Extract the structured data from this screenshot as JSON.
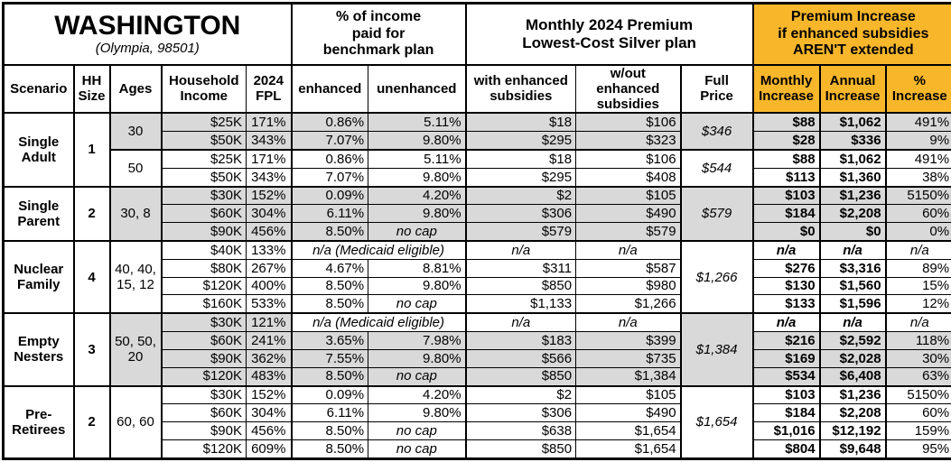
{
  "title": "WASHINGTON",
  "subtitle": "(Olympia, 98501)",
  "colors": {
    "accent_orange": "#F8B72B",
    "shade_gray": "#D9D9D9"
  },
  "sections": {
    "income_pct": "% of income\npaid for\nbenchmark plan",
    "premium": "Monthly 2024 Premium\nLowest-Cost Silver plan",
    "increase": "Premium Increase\nif enhanced subsidies\nAREN'T extended"
  },
  "columns": {
    "scenario": "Scenario",
    "hh_size": "HH\nSize",
    "ages": "Ages",
    "income": "Household\nIncome",
    "fpl": "2024\nFPL",
    "enhanced": "enhanced",
    "unenhanced": "unenhanced",
    "with_sub": "with enhanced\nsubsidies",
    "wout_sub": "w/out enhanced\nsubsidies",
    "full_price": "Full\nPrice",
    "monthly": "Monthly\nIncrease",
    "annual": "Annual\nIncrease",
    "pct": "%\nIncrease"
  },
  "groups": [
    {
      "scenario": "Single Adult",
      "hh_size": "1",
      "blocks": [
        {
          "ages": "30",
          "shaded": true,
          "full_price": "$346",
          "rows": [
            {
              "income": "$25K",
              "fpl": "171%",
              "enhanced": "0.86%",
              "unenhanced": "5.11%",
              "with_sub": "$18",
              "wout_sub": "$106",
              "monthly": "$88",
              "annual": "$1,062",
              "pct": "491%"
            },
            {
              "income": "$50K",
              "fpl": "343%",
              "enhanced": "7.07%",
              "unenhanced": "9.80%",
              "with_sub": "$295",
              "wout_sub": "$323",
              "monthly": "$28",
              "annual": "$336",
              "pct": "9%"
            }
          ]
        },
        {
          "ages": "50",
          "shaded": false,
          "full_price": "$544",
          "rows": [
            {
              "income": "$25K",
              "fpl": "171%",
              "enhanced": "0.86%",
              "unenhanced": "5.11%",
              "with_sub": "$18",
              "wout_sub": "$106",
              "monthly": "$88",
              "annual": "$1,062",
              "pct": "491%"
            },
            {
              "income": "$50K",
              "fpl": "343%",
              "enhanced": "7.07%",
              "unenhanced": "9.80%",
              "with_sub": "$295",
              "wout_sub": "$408",
              "monthly": "$113",
              "annual": "$1,360",
              "pct": "38%"
            }
          ]
        }
      ]
    },
    {
      "scenario": "Single Parent",
      "hh_size": "2",
      "blocks": [
        {
          "ages": "30, 8",
          "shaded": true,
          "full_price": "$579",
          "rows": [
            {
              "income": "$30K",
              "fpl": "152%",
              "enhanced": "0.09%",
              "unenhanced": "4.20%",
              "with_sub": "$2",
              "wout_sub": "$105",
              "monthly": "$103",
              "annual": "$1,236",
              "pct": "5150%"
            },
            {
              "income": "$60K",
              "fpl": "304%",
              "enhanced": "6.11%",
              "unenhanced": "9.80%",
              "with_sub": "$306",
              "wout_sub": "$490",
              "monthly": "$184",
              "annual": "$2,208",
              "pct": "60%"
            },
            {
              "income": "$90K",
              "fpl": "456%",
              "enhanced": "8.50%",
              "unenhanced": "no cap",
              "with_sub": "$579",
              "wout_sub": "$579",
              "monthly": "$0",
              "annual": "$0",
              "pct": "0%"
            }
          ]
        }
      ]
    },
    {
      "scenario": "Nuclear Family",
      "hh_size": "4",
      "blocks": [
        {
          "ages": "40, 40, 15, 12",
          "shaded": false,
          "full_price": "$1,266",
          "rows": [
            {
              "income": "$40K",
              "fpl": "133%",
              "note": "n/a (Medicaid eligible)",
              "with_sub": "n/a",
              "wout_sub": "n/a",
              "monthly": "n/a",
              "annual": "n/a",
              "pct": "n/a"
            },
            {
              "income": "$80K",
              "fpl": "267%",
              "enhanced": "4.67%",
              "unenhanced": "8.81%",
              "with_sub": "$311",
              "wout_sub": "$587",
              "monthly": "$276",
              "annual": "$3,316",
              "pct": "89%"
            },
            {
              "income": "$120K",
              "fpl": "400%",
              "enhanced": "8.50%",
              "unenhanced": "9.80%",
              "with_sub": "$850",
              "wout_sub": "$980",
              "monthly": "$130",
              "annual": "$1,560",
              "pct": "15%"
            },
            {
              "income": "$160K",
              "fpl": "533%",
              "enhanced": "8.50%",
              "unenhanced": "no cap",
              "with_sub": "$1,133",
              "wout_sub": "$1,266",
              "monthly": "$133",
              "annual": "$1,596",
              "pct": "12%"
            }
          ]
        }
      ]
    },
    {
      "scenario": "Empty Nesters",
      "hh_size": "3",
      "blocks": [
        {
          "ages": "50, 50, 20",
          "shaded": true,
          "full_price": "$1,384",
          "rows": [
            {
              "income": "$30K",
              "fpl": "121%",
              "note": "n/a (Medicaid eligible)",
              "with_sub": "n/a",
              "wout_sub": "n/a",
              "monthly": "n/a",
              "annual": "n/a",
              "pct": "n/a"
            },
            {
              "income": "$60K",
              "fpl": "241%",
              "enhanced": "3.65%",
              "unenhanced": "7.98%",
              "with_sub": "$183",
              "wout_sub": "$399",
              "monthly": "$216",
              "annual": "$2,592",
              "pct": "118%"
            },
            {
              "income": "$90K",
              "fpl": "362%",
              "enhanced": "7.55%",
              "unenhanced": "9.80%",
              "with_sub": "$566",
              "wout_sub": "$735",
              "monthly": "$169",
              "annual": "$2,028",
              "pct": "30%"
            },
            {
              "income": "$120K",
              "fpl": "483%",
              "enhanced": "8.50%",
              "unenhanced": "no cap",
              "with_sub": "$850",
              "wout_sub": "$1,384",
              "monthly": "$534",
              "annual": "$6,408",
              "pct": "63%"
            }
          ]
        }
      ]
    },
    {
      "scenario": "Pre-Retirees",
      "hh_size": "2",
      "blocks": [
        {
          "ages": "60, 60",
          "shaded": false,
          "full_price": "$1,654",
          "rows": [
            {
              "income": "$30K",
              "fpl": "152%",
              "enhanced": "0.09%",
              "unenhanced": "4.20%",
              "with_sub": "$2",
              "wout_sub": "$105",
              "monthly": "$103",
              "annual": "$1,236",
              "pct": "5150%"
            },
            {
              "income": "$60K",
              "fpl": "304%",
              "enhanced": "6.11%",
              "unenhanced": "9.80%",
              "with_sub": "$306",
              "wout_sub": "$490",
              "monthly": "$184",
              "annual": "$2,208",
              "pct": "60%"
            },
            {
              "income": "$90K",
              "fpl": "456%",
              "enhanced": "8.50%",
              "unenhanced": "no cap",
              "with_sub": "$638",
              "wout_sub": "$1,654",
              "monthly": "$1,016",
              "annual": "$12,192",
              "pct": "159%"
            },
            {
              "income": "$120K",
              "fpl": "609%",
              "enhanced": "8.50%",
              "unenhanced": "no cap",
              "with_sub": "$850",
              "wout_sub": "$1,654",
              "monthly": "$804",
              "annual": "$9,648",
              "pct": "95%"
            }
          ]
        }
      ]
    }
  ]
}
